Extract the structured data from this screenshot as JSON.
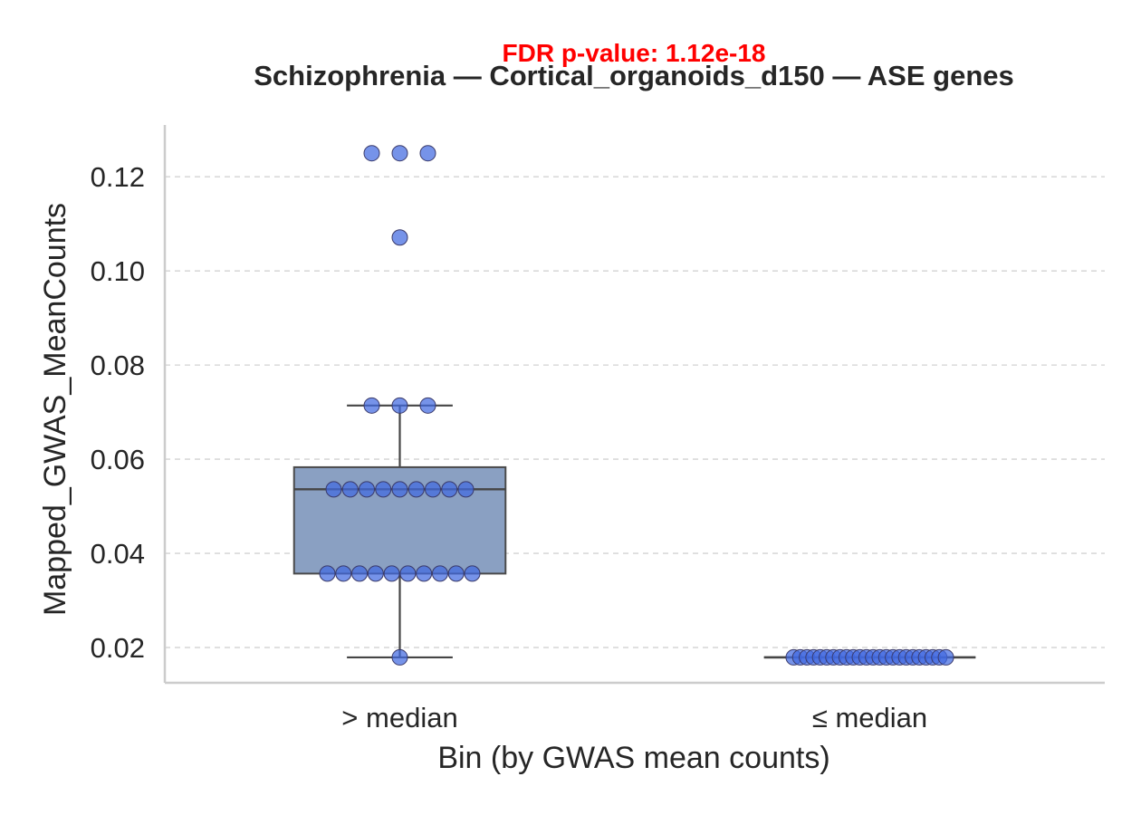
{
  "chart_data": {
    "type": "box",
    "title": "Schizophrenia — Cortical_organoids_d150 — ASE genes",
    "annotation": "FDR p-value: 1.12e-18",
    "xlabel": "Bin (by GWAS mean counts)",
    "ylabel": "Mapped_GWAS_MeanCounts",
    "categories": [
      "> median",
      "≤ median"
    ],
    "ylim": [
      0.0125,
      0.131
    ],
    "yticks": [
      0.02,
      0.04,
      0.06,
      0.08,
      0.1,
      0.12
    ],
    "ytick_labels": [
      "0.02",
      "0.04",
      "0.06",
      "0.08",
      "0.10",
      "0.12"
    ],
    "grid": "horizontal dashed",
    "boxes": [
      {
        "category": "> median",
        "q1": 0.0357,
        "median": 0.0536,
        "q3": 0.0583,
        "whisker_low": 0.0179,
        "whisker_high": 0.0714
      },
      {
        "category": "≤ median",
        "q1": 0.0179,
        "median": 0.0179,
        "q3": 0.0179,
        "whisker_low": 0.0179,
        "whisker_high": 0.0179
      }
    ],
    "points": [
      {
        "category": "> median",
        "values": [
          0.125,
          0.125,
          0.125,
          0.1071,
          0.0714,
          0.0714,
          0.0714,
          0.0536,
          0.0536,
          0.0536,
          0.0536,
          0.0536,
          0.0536,
          0.0536,
          0.0536,
          0.0536,
          0.0357,
          0.0357,
          0.0357,
          0.0357,
          0.0357,
          0.0357,
          0.0357,
          0.0357,
          0.0357,
          0.0357,
          0.0179
        ]
      },
      {
        "category": "≤ median",
        "values": [
          0.0179,
          0.0179,
          0.0179,
          0.0179,
          0.0179,
          0.0179,
          0.0179,
          0.0179,
          0.0179,
          0.0179,
          0.0179,
          0.0179,
          0.0179,
          0.0179,
          0.0179,
          0.0179,
          0.0179,
          0.0179,
          0.0179,
          0.0179,
          0.0179,
          0.0179,
          0.0179,
          0.0179
        ]
      }
    ],
    "colors": {
      "box": "#8aa0c2",
      "points": "#4169e1",
      "annotation": "#ff0000"
    }
  }
}
